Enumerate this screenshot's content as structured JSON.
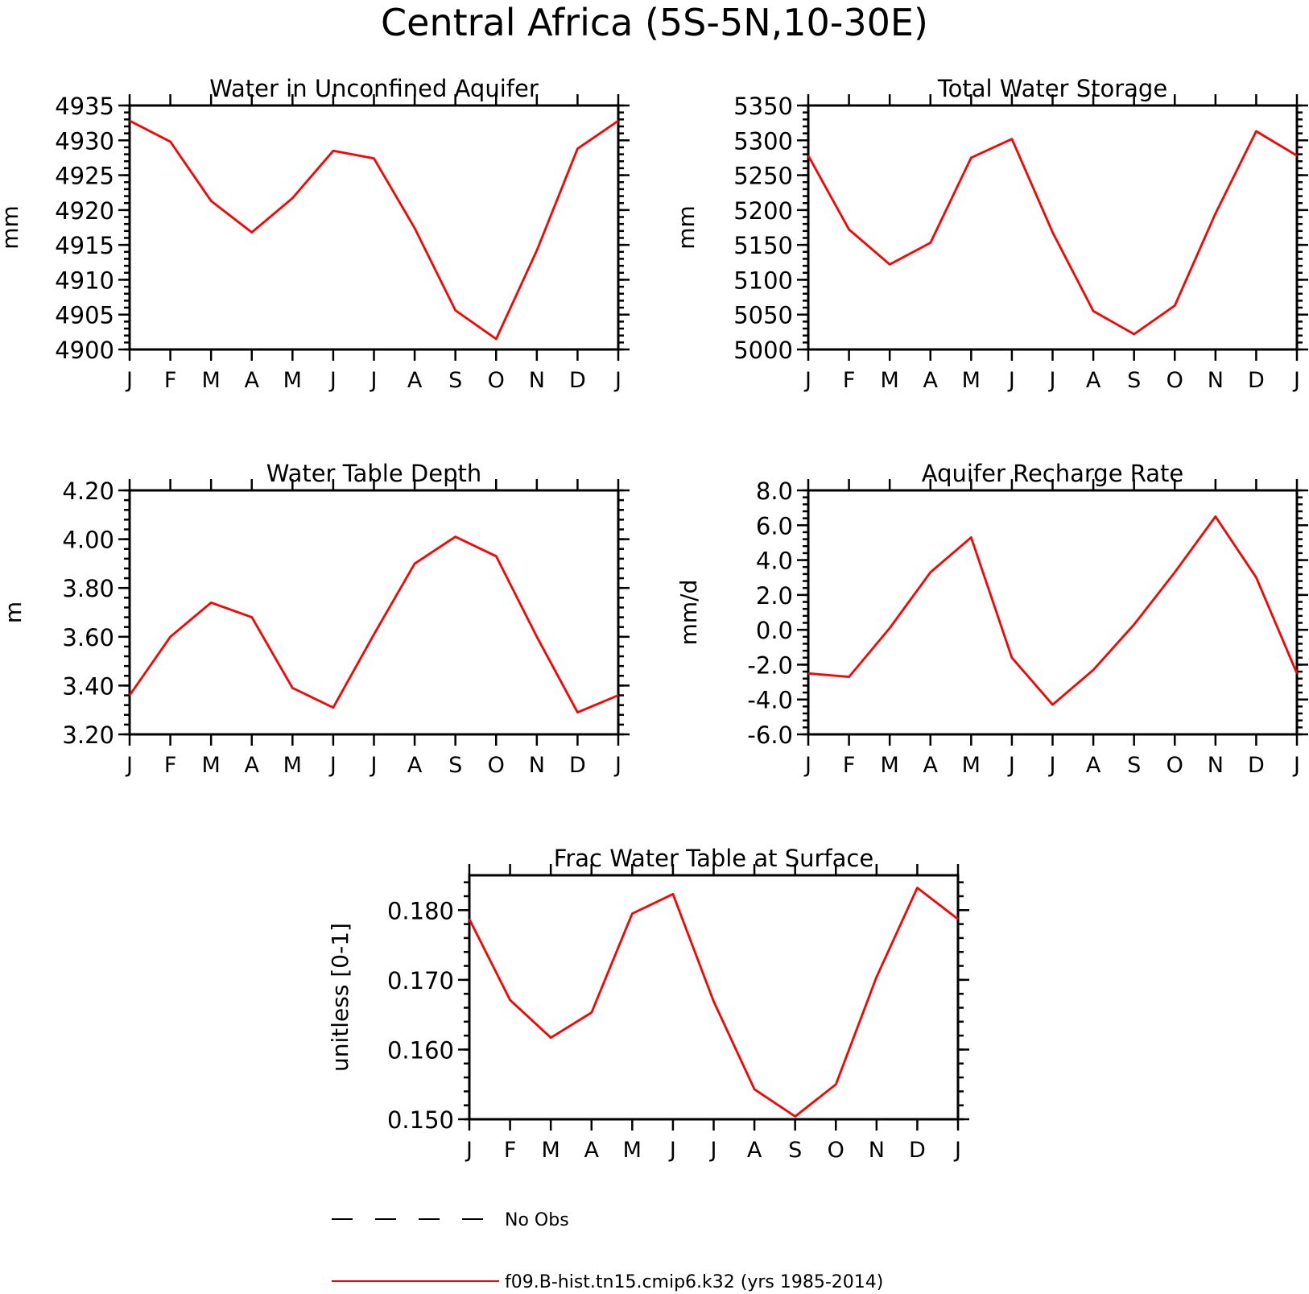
{
  "title": "Central Africa (5S-5N,10-30E)",
  "months": [
    "J",
    "F",
    "M",
    "A",
    "M",
    "J",
    "J",
    "A",
    "S",
    "O",
    "N",
    "D",
    "J"
  ],
  "legend": {
    "entries": [
      {
        "label": "No Obs",
        "style": "dashed",
        "color": "#000000"
      },
      {
        "label": "f09.B-hist.tn15.cmip6.k32 (yrs 1985-2014)",
        "style": "solid",
        "color": "#ff0000"
      }
    ]
  },
  "colors": {
    "series": "#ff0000",
    "axes": "#000000"
  },
  "chart_data": [
    {
      "type": "line",
      "title": "Water in Unconfined Aquifer",
      "ylabel": "mm",
      "ylim": [
        4900,
        4935
      ],
      "yticks": [
        "4900",
        "4905",
        "4910",
        "4915",
        "4920",
        "4925",
        "4930",
        "4935"
      ],
      "categories": [
        "J",
        "F",
        "M",
        "A",
        "M",
        "J",
        "J",
        "A",
        "S",
        "O",
        "N",
        "D",
        "J"
      ],
      "series": [
        {
          "values": [
            4932.8,
            4929.8,
            4921.3,
            4916.8,
            4921.7,
            4928.5,
            4927.4,
            4917.4,
            4905.6,
            4901.5,
            4914.2,
            4928.8,
            4932.8
          ]
        }
      ]
    },
    {
      "type": "line",
      "title": "Total Water Storage",
      "ylabel": "mm",
      "ylim": [
        5000,
        5350
      ],
      "yticks": [
        "5000",
        "5050",
        "5100",
        "5150",
        "5200",
        "5250",
        "5300",
        "5350"
      ],
      "categories": [
        "J",
        "F",
        "M",
        "A",
        "M",
        "J",
        "J",
        "A",
        "S",
        "O",
        "N",
        "D",
        "J"
      ],
      "series": [
        {
          "values": [
            5278,
            5172,
            5122,
            5153,
            5275,
            5302,
            5168,
            5055,
            5022,
            5063,
            5195,
            5313,
            5278
          ]
        }
      ]
    },
    {
      "type": "line",
      "title": "Water Table Depth",
      "ylabel": "m",
      "ylim": [
        3.2,
        4.2
      ],
      "yticks": [
        "3.20",
        "3.40",
        "3.60",
        "3.80",
        "4.00",
        "4.20"
      ],
      "categories": [
        "J",
        "F",
        "M",
        "A",
        "M",
        "J",
        "J",
        "A",
        "S",
        "O",
        "N",
        "D",
        "J"
      ],
      "series": [
        {
          "values": [
            3.36,
            3.6,
            3.74,
            3.68,
            3.39,
            3.31,
            3.61,
            3.9,
            4.01,
            3.93,
            3.6,
            3.29,
            3.36
          ]
        }
      ]
    },
    {
      "type": "line",
      "title": "Aquifer Recharge Rate",
      "ylabel": "mm/d",
      "ylim": [
        -6.0,
        8.0
      ],
      "yticks": [
        "-6.0",
        "-4.0",
        "-2.0",
        "0.0",
        "2.0",
        "4.0",
        "6.0",
        "8.0"
      ],
      "categories": [
        "J",
        "F",
        "M",
        "A",
        "M",
        "J",
        "J",
        "A",
        "S",
        "O",
        "N",
        "D",
        "J"
      ],
      "series": [
        {
          "values": [
            -2.5,
            -2.7,
            0.1,
            3.3,
            5.3,
            -1.6,
            -4.3,
            -2.3,
            0.3,
            3.3,
            6.5,
            3.0,
            -2.5
          ]
        }
      ]
    },
    {
      "type": "line",
      "title": "Frac Water Table at Surface",
      "ylabel": "unitless [0-1]",
      "ylim": [
        0.15,
        0.185
      ],
      "yticks": [
        "0.150",
        "0.160",
        "0.170",
        "0.180"
      ],
      "categories": [
        "J",
        "F",
        "M",
        "A",
        "M",
        "J",
        "J",
        "A",
        "S",
        "O",
        "N",
        "D",
        "J"
      ],
      "series": [
        {
          "values": [
            0.1787,
            0.1671,
            0.1617,
            0.1653,
            0.1795,
            0.1823,
            0.1669,
            0.1543,
            0.1504,
            0.155,
            0.1704,
            0.1832,
            0.1787
          ]
        }
      ]
    }
  ]
}
